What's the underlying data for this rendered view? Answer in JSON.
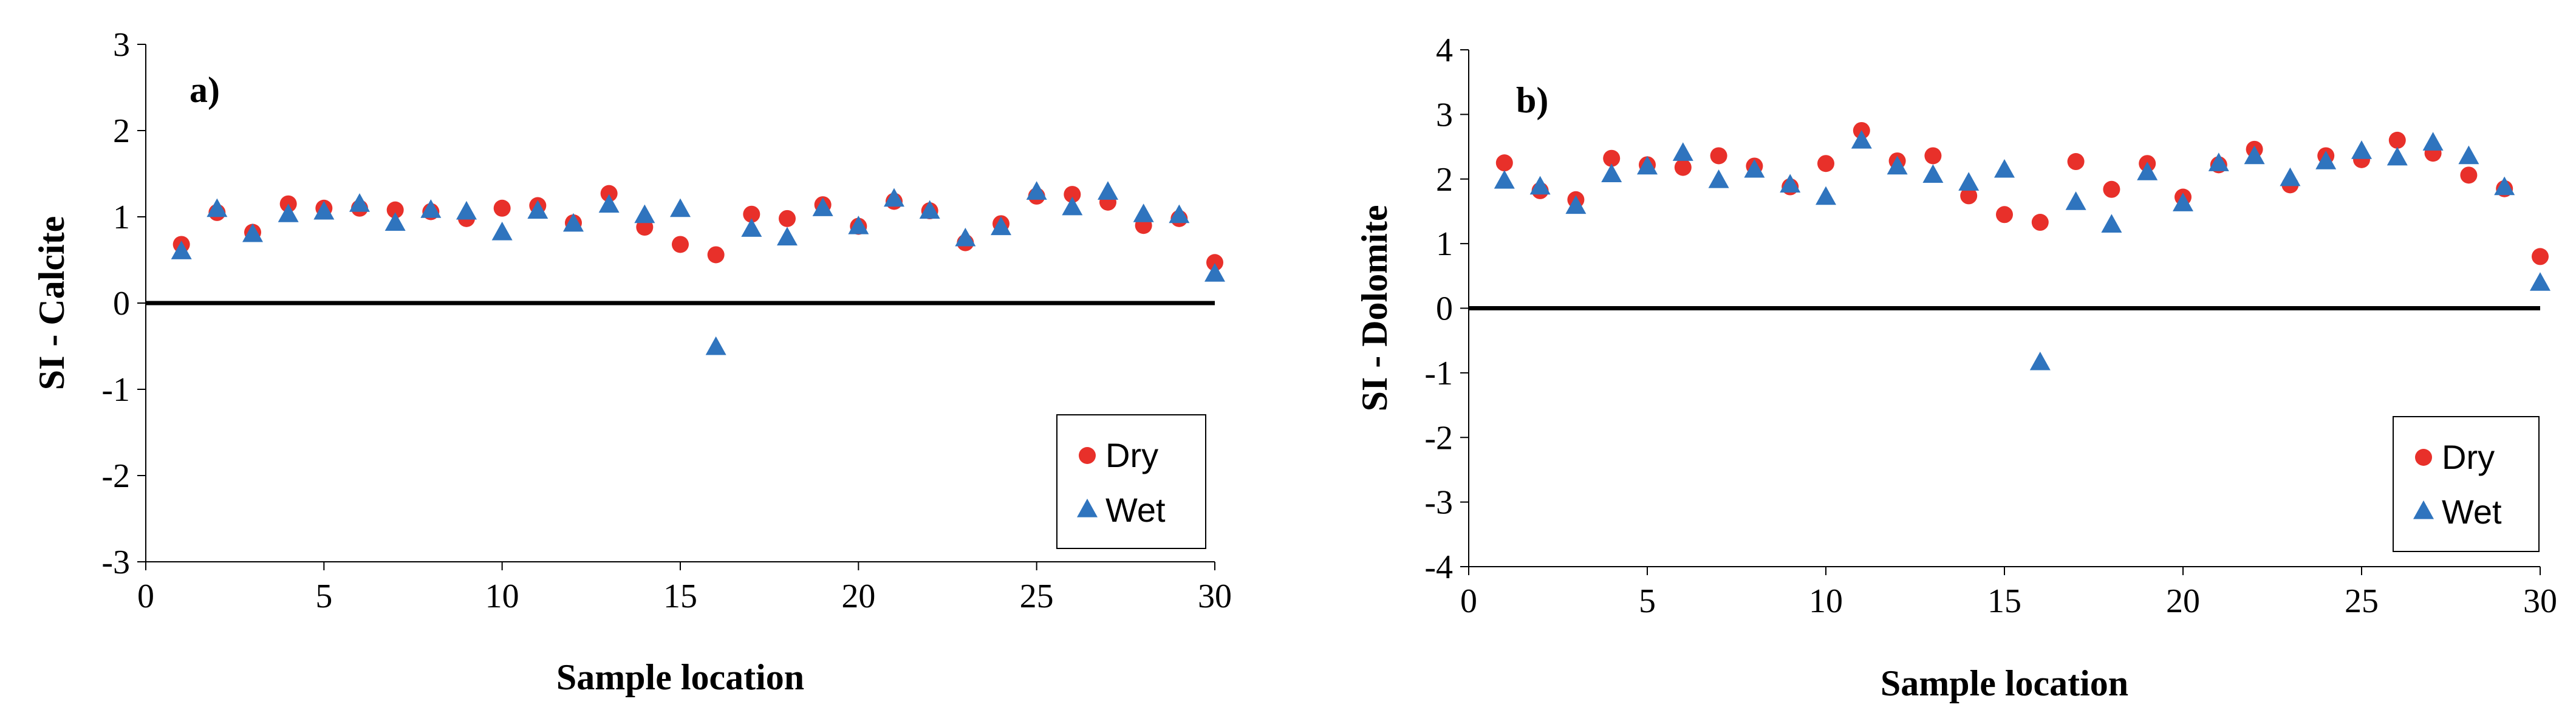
{
  "chart_data": [
    {
      "type": "scatter",
      "panel_label": "a)",
      "title": "",
      "xlabel": "Sample location",
      "ylabel": "SI - Calcite",
      "xlim": [
        0,
        30
      ],
      "ylim": [
        -3,
        3
      ],
      "xticks": [
        "0",
        "5",
        "10",
        "15",
        "20",
        "25",
        "30"
      ],
      "yticks": [
        "-3",
        "-2",
        "-1",
        "0",
        "1",
        "2",
        "3"
      ],
      "reference_line": 0,
      "legend_position": "bottom-right",
      "series": [
        {
          "name": "Dry",
          "marker": "circle",
          "color": "#e8302a",
          "x": [
            1,
            2,
            3,
            4,
            5,
            6,
            7,
            8,
            9,
            10,
            11,
            12,
            13,
            14,
            15,
            16,
            17,
            18,
            19,
            20,
            21,
            22,
            23,
            24,
            25,
            26,
            27,
            28,
            29,
            30
          ],
          "y": [
            0.68,
            1.05,
            0.82,
            1.15,
            1.1,
            1.1,
            1.08,
            1.06,
            0.98,
            1.1,
            1.13,
            0.93,
            1.27,
            0.88,
            0.68,
            0.56,
            1.03,
            0.98,
            1.14,
            0.89,
            1.18,
            1.07,
            0.7,
            0.92,
            1.24,
            1.26,
            1.17,
            0.9,
            0.98,
            0.47
          ]
        },
        {
          "name": "Wet",
          "marker": "triangle",
          "color": "#2f74be",
          "x": [
            1,
            2,
            3,
            4,
            5,
            6,
            7,
            8,
            9,
            10,
            11,
            12,
            13,
            14,
            15,
            16,
            17,
            18,
            19,
            20,
            21,
            22,
            23,
            24,
            25,
            26,
            27,
            28,
            29,
            30
          ],
          "y": [
            0.59,
            1.08,
            0.79,
            1.02,
            1.05,
            1.14,
            0.92,
            1.07,
            1.05,
            0.81,
            1.06,
            0.91,
            1.13,
            1.01,
            1.08,
            -0.52,
            0.85,
            0.75,
            1.09,
            0.88,
            1.2,
            1.06,
            0.74,
            0.87,
            1.28,
            1.1,
            1.28,
            1.02,
            1.01,
            0.33
          ]
        }
      ]
    },
    {
      "type": "scatter",
      "panel_label": "b)",
      "title": "",
      "xlabel": "Sample location",
      "ylabel": "SI - Dolomite",
      "xlim": [
        0,
        30
      ],
      "ylim": [
        -4,
        4
      ],
      "xticks": [
        "0",
        "5",
        "10",
        "15",
        "20",
        "25",
        "30"
      ],
      "yticks": [
        "-4",
        "-3",
        "-2",
        "-1",
        "0",
        "1",
        "2",
        "3",
        "4"
      ],
      "reference_line": 0,
      "legend_position": "bottom-right",
      "series": [
        {
          "name": "Dry",
          "marker": "circle",
          "color": "#e8302a",
          "x": [
            1,
            2,
            3,
            4,
            5,
            6,
            7,
            8,
            9,
            10,
            11,
            12,
            13,
            14,
            15,
            16,
            17,
            18,
            19,
            20,
            21,
            22,
            23,
            24,
            25,
            26,
            27,
            28,
            29,
            30
          ],
          "y": [
            2.25,
            1.82,
            1.68,
            2.32,
            2.22,
            2.18,
            2.36,
            2.2,
            1.88,
            2.24,
            2.75,
            2.28,
            2.36,
            1.74,
            1.45,
            1.33,
            2.27,
            1.84,
            2.24,
            1.72,
            2.22,
            2.46,
            1.91,
            2.36,
            2.3,
            2.6,
            2.4,
            2.06,
            1.85,
            0.8
          ]
        },
        {
          "name": "Wet",
          "marker": "triangle",
          "color": "#2f74be",
          "x": [
            1,
            2,
            3,
            4,
            5,
            6,
            7,
            8,
            9,
            10,
            11,
            12,
            13,
            14,
            15,
            16,
            17,
            18,
            19,
            20,
            21,
            22,
            23,
            24,
            25,
            26,
            27,
            28,
            29,
            30
          ],
          "y": [
            1.96,
            1.87,
            1.57,
            2.06,
            2.18,
            2.39,
            1.97,
            2.13,
            1.9,
            1.71,
            2.58,
            2.18,
            2.05,
            1.93,
            2.13,
            -0.85,
            1.63,
            1.28,
            2.09,
            1.61,
            2.23,
            2.34,
            2.0,
            2.26,
            2.42,
            2.32,
            2.55,
            2.34,
            1.86,
            0.38
          ]
        }
      ]
    }
  ]
}
